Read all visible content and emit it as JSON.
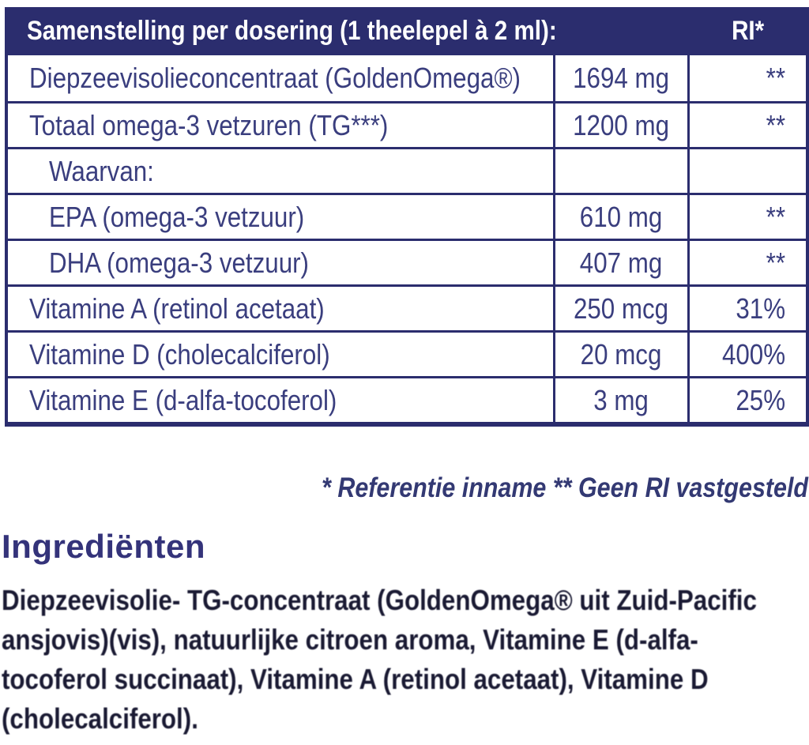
{
  "table": {
    "header": {
      "title": "Samenstelling per dosering (1 theelepel à 2 ml):",
      "ri_label": "RI*"
    },
    "rows": [
      {
        "name": "Diepzeevisolieconcentraat (GoldenOmega®)",
        "amount": "1694 mg",
        "ri": "**",
        "indent": false
      },
      {
        "name": "Totaal omega-3 vetzuren (TG***)",
        "amount": "1200 mg",
        "ri": "**",
        "indent": false
      },
      {
        "name": "Waarvan:",
        "amount": "",
        "ri": "",
        "indent": true
      },
      {
        "name": "EPA (omega-3 vetzuur)",
        "amount": "610 mg",
        "ri": "**",
        "indent": true
      },
      {
        "name": "DHA (omega-3 vetzuur)",
        "amount": "407 mg",
        "ri": "**",
        "indent": true
      },
      {
        "name": "Vitamine A (retinol acetaat)",
        "amount": "250 mcg",
        "ri": "31%",
        "indent": false
      },
      {
        "name": "Vitamine D (cholecalciferol)",
        "amount": "20 mcg",
        "ri": "400%",
        "indent": false
      },
      {
        "name": "Vitamine E (d-alfa-tocoferol)",
        "amount": "3 mg",
        "ri": "25%",
        "indent": false
      }
    ]
  },
  "footnote": "* Referentie inname  ** Geen RI vastgesteld",
  "ingredients": {
    "heading": "Ingrediënten",
    "lines": [
      "Diepzeevisolie- TG-concentraat (GoldenOmega® uit Zuid-Pacific",
      "ansjovis)(vis), natuurlijke citroen aroma, Vitamine E (d-alfa-",
      "tocoferol succinaat), Vitamine A (retinol acetaat), Vitamine D",
      "(cholecalciferol)."
    ],
    "full_text": "Diepzeevisolie- TG-concentraat (GoldenOmega® uit Zuid-Pacific ansjovis)(vis), natuurlijke citroen aroma, Vitamine E (d-alfa-tocoferol succinaat), Vitamine A (retinol acetaat), Vitamine D (cholecalciferol)."
  },
  "colors": {
    "navy_header": "#2b2d6e",
    "table_text": "#3a3e7e",
    "footnote_text": "#333973",
    "heading_text": "#34337a",
    "paragraph_text": "#1a1a33",
    "background": "#ffffff"
  }
}
